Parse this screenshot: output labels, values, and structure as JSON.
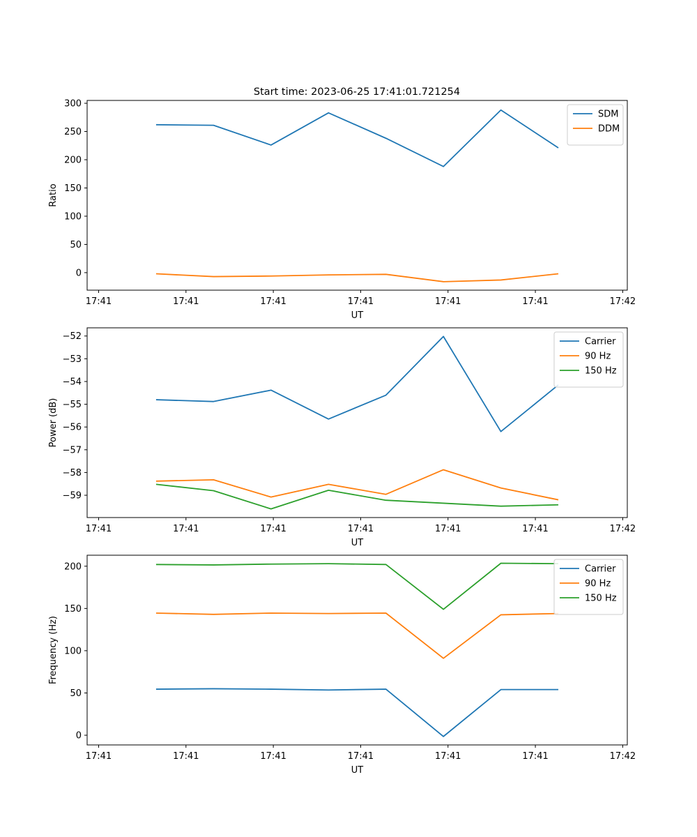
{
  "figure_title": "Start time: 2023-06-25 17:41:01.721254",
  "colors": {
    "c0": "#1f77b4",
    "c1": "#ff7f0e",
    "c2": "#2ca02c"
  },
  "chart_data": [
    {
      "type": "line",
      "xlabel": "UT",
      "ylabel": "Ratio",
      "x": [
        0.5,
        1.0,
        1.5,
        2.0,
        2.5,
        3.0,
        3.5,
        4.0
      ],
      "xlim": [
        -0.1,
        4.6
      ],
      "xtick_values": [
        0,
        0.76,
        1.52,
        2.28,
        3.04,
        3.8,
        4.56
      ],
      "xtick_labels": [
        "17:41",
        "17:41",
        "17:41",
        "17:41",
        "17:41",
        "17:41",
        "17:42"
      ],
      "ylim": [
        -31,
        305
      ],
      "yticks": [
        0,
        50,
        100,
        150,
        200,
        250,
        300
      ],
      "legend": "top-right",
      "series": [
        {
          "name": "SDM",
          "color": "#1f77b4",
          "values": [
            262,
            261,
            226,
            283,
            238,
            188,
            288,
            221
          ]
        },
        {
          "name": "DDM",
          "color": "#ff7f0e",
          "values": [
            -2,
            -7,
            -6,
            -4,
            -3,
            -16,
            -13,
            -2
          ]
        }
      ]
    },
    {
      "type": "line",
      "xlabel": "UT",
      "ylabel": "Power (dB)",
      "x": [
        0.5,
        1.0,
        1.5,
        2.0,
        2.5,
        3.0,
        3.5,
        4.0
      ],
      "xlim": [
        -0.1,
        4.6
      ],
      "xtick_values": [
        0,
        0.76,
        1.52,
        2.28,
        3.04,
        3.8,
        4.56
      ],
      "xtick_labels": [
        "17:41",
        "17:41",
        "17:41",
        "17:41",
        "17:41",
        "17:41",
        "17:42"
      ],
      "ylim": [
        -59.98,
        -51.64
      ],
      "yticks": [
        -59,
        -58,
        -57,
        -56,
        -55,
        -54,
        -53,
        -52
      ],
      "legend": "top-right",
      "series": [
        {
          "name": "Carrier",
          "color": "#1f77b4",
          "values": [
            -54.8,
            -54.88,
            -54.38,
            -55.65,
            -54.6,
            -52.02,
            -56.2,
            -54.15
          ]
        },
        {
          "name": "90 Hz",
          "color": "#ff7f0e",
          "values": [
            -58.38,
            -58.32,
            -59.08,
            -58.52,
            -58.96,
            -57.88,
            -58.68,
            -59.2
          ]
        },
        {
          "name": "150 Hz",
          "color": "#2ca02c",
          "values": [
            -58.52,
            -58.8,
            -59.6,
            -58.78,
            -59.22,
            -59.35,
            -59.48,
            -59.42
          ]
        }
      ]
    },
    {
      "type": "line",
      "xlabel": "UT",
      "ylabel": "Frequency (Hz)",
      "x": [
        0.5,
        1.0,
        1.5,
        2.0,
        2.5,
        3.0,
        3.5,
        4.0
      ],
      "xlim": [
        -0.1,
        4.6
      ],
      "xtick_values": [
        0,
        0.76,
        1.52,
        2.28,
        3.04,
        3.8,
        4.56
      ],
      "xtick_labels": [
        "17:41",
        "17:41",
        "17:41",
        "17:41",
        "17:41",
        "17:41",
        "17:42"
      ],
      "ylim": [
        -11.5,
        213
      ],
      "yticks": [
        0,
        50,
        100,
        150,
        200
      ],
      "legend": "top-right",
      "series": [
        {
          "name": "Carrier",
          "color": "#1f77b4",
          "values": [
            54.5,
            55,
            54.5,
            53.5,
            54.5,
            -1.5,
            54,
            54
          ]
        },
        {
          "name": "90 Hz",
          "color": "#ff7f0e",
          "values": [
            144.5,
            143,
            144.5,
            144,
            144.5,
            91,
            142.5,
            144
          ]
        },
        {
          "name": "150 Hz",
          "color": "#2ca02c",
          "values": [
            202,
            201.5,
            202.5,
            203,
            202,
            149,
            203.5,
            203
          ]
        }
      ]
    }
  ]
}
